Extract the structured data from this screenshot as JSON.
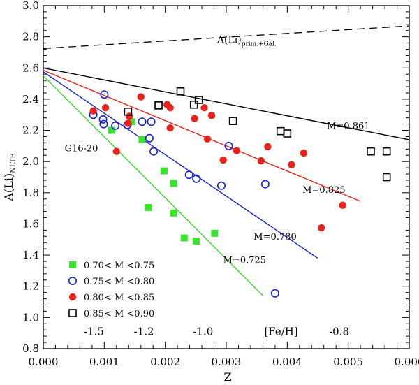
{
  "chart_data": {
    "type": "scatter",
    "xlabel": "Z",
    "ylabel_main": "A(Li)",
    "ylabel_sub": "NLTE",
    "xlim": [
      0.0,
      0.006
    ],
    "ylim": [
      0.8,
      3.0
    ],
    "x_ticks": [
      {
        "value": 0.0,
        "label": "0.000"
      },
      {
        "value": 0.001,
        "label": "0.001"
      },
      {
        "value": 0.002,
        "label": "0.002"
      },
      {
        "value": 0.003,
        "label": "0.003"
      },
      {
        "value": 0.004,
        "label": "0.004"
      },
      {
        "value": 0.005,
        "label": "0.005"
      },
      {
        "value": 0.006,
        "label": "0.006"
      }
    ],
    "y_ticks": [
      {
        "value": 0.8,
        "label": "0.8"
      },
      {
        "value": 1.0,
        "label": "1.0"
      },
      {
        "value": 1.2,
        "label": "1.2"
      },
      {
        "value": 1.4,
        "label": "1.4"
      },
      {
        "value": 1.6,
        "label": "1.6"
      },
      {
        "value": 1.8,
        "label": "1.8"
      },
      {
        "value": 2.0,
        "label": "2.0"
      },
      {
        "value": 2.2,
        "label": "2.2"
      },
      {
        "value": 2.4,
        "label": "2.4"
      },
      {
        "value": 2.6,
        "label": "2.6"
      },
      {
        "value": 2.8,
        "label": "2.8"
      },
      {
        "value": 3.0,
        "label": "3.0"
      }
    ],
    "feh_axis": {
      "title": "[Fe/H]",
      "title_x": 0.0039,
      "y": 0.888,
      "ticks": [
        {
          "z": 0.00083,
          "label": "-1.5"
        },
        {
          "z": 0.00165,
          "label": "-1.2"
        },
        {
          "z": 0.00262,
          "label": "-1.0"
        },
        {
          "z": 0.00485,
          "label": "-0.8"
        }
      ]
    },
    "primordial_line": {
      "label": "A(Li)",
      "label_sub": "prim.+Gal.",
      "style": "dashed",
      "points": [
        [
          0.0,
          2.725
        ],
        [
          0.006,
          2.87
        ]
      ],
      "label_at": [
        0.00285,
        2.76
      ]
    },
    "fit_lines": [
      {
        "label": "M=0.861",
        "color": "#000000",
        "points": [
          [
            0.0,
            2.6
          ],
          [
            0.006,
            2.14
          ]
        ],
        "label_at": [
          0.00465,
          2.21
        ]
      },
      {
        "label": "M=0.825",
        "color": "#e8231b",
        "points": [
          [
            0.0,
            2.585
          ],
          [
            0.0052,
            1.745
          ]
        ],
        "label_at": [
          0.00425,
          1.8
        ]
      },
      {
        "label": "M=0.780",
        "color": "#1522d8",
        "points": [
          [
            0.0,
            2.575
          ],
          [
            0.0045,
            1.38
          ]
        ],
        "label_at": [
          0.00345,
          1.5
        ]
      },
      {
        "label": "M=0.725",
        "color": "#3be42c",
        "points": [
          [
            0.0,
            2.55
          ],
          [
            0.0036,
            1.14
          ]
        ],
        "label_at": [
          0.00295,
          1.35
        ]
      }
    ],
    "annotations": [
      {
        "text": "G16-20",
        "color": "#e8231b",
        "at": [
          0.00035,
          2.065
        ]
      }
    ],
    "legend": {
      "placement": "bottom-left",
      "entries": [
        {
          "series": "green_squares",
          "label": "0.70< M <0.75"
        },
        {
          "series": "blue_circles",
          "label": "0.75< M <0.80"
        },
        {
          "series": "red_dots",
          "label": "0.80< M <0.85"
        },
        {
          "series": "black_squares",
          "label": "0.85< M <0.90"
        }
      ]
    },
    "series": [
      {
        "key": "green_squares",
        "name": "0.70< M <0.75",
        "marker": "filled-square",
        "color": "#3be42c",
        "points": [
          [
            0.00112,
            2.2
          ],
          [
            0.00145,
            2.255
          ],
          [
            0.00162,
            2.14
          ],
          [
            0.00198,
            1.94
          ],
          [
            0.00214,
            1.86
          ],
          [
            0.00172,
            1.705
          ],
          [
            0.00214,
            1.67
          ],
          [
            0.00231,
            1.51
          ],
          [
            0.00251,
            1.49
          ],
          [
            0.00281,
            1.54
          ]
        ]
      },
      {
        "key": "blue_circles",
        "name": "0.75< M <0.80",
        "marker": "open-circle",
        "color": "#1522d8",
        "points": [
          [
            0.00082,
            2.3
          ],
          [
            0.00098,
            2.27
          ],
          [
            0.00099,
            2.24
          ],
          [
            0.001,
            2.43
          ],
          [
            0.00118,
            2.23
          ],
          [
            0.00138,
            2.235
          ],
          [
            0.00162,
            2.255
          ],
          [
            0.00177,
            2.255
          ],
          [
            0.00174,
            2.15
          ],
          [
            0.00181,
            2.065
          ],
          [
            0.00239,
            1.915
          ],
          [
            0.00251,
            1.89
          ],
          [
            0.00292,
            1.845
          ],
          [
            0.00304,
            2.1
          ],
          [
            0.00364,
            1.855
          ],
          [
            0.0038,
            1.155
          ]
        ]
      },
      {
        "key": "red_dots",
        "name": "0.80< M <0.85",
        "marker": "filled-circle",
        "color": "#e8231b",
        "points": [
          [
            0.00082,
            2.325
          ],
          [
            0.00102,
            2.345
          ],
          [
            0.00139,
            2.245
          ],
          [
            0.00141,
            2.29
          ],
          [
            0.0016,
            2.415
          ],
          [
            0.00203,
            2.365
          ],
          [
            0.00208,
            2.345
          ],
          [
            0.00208,
            2.215
          ],
          [
            0.00248,
            2.275
          ],
          [
            0.00264,
            2.345
          ],
          [
            0.00276,
            2.295
          ],
          [
            0.00269,
            2.145
          ],
          [
            0.00295,
            2.01
          ],
          [
            0.00317,
            2.07
          ],
          [
            0.00357,
            2.005
          ],
          [
            0.00368,
            2.095
          ],
          [
            0.00407,
            1.98
          ],
          [
            0.00427,
            2.055
          ],
          [
            0.00456,
            1.575
          ],
          [
            0.00491,
            1.72
          ],
          [
            0.0012,
            2.065
          ]
        ]
      },
      {
        "key": "black_squares",
        "name": "0.85< M <0.90",
        "marker": "open-square",
        "color": "#000000",
        "points": [
          [
            0.00139,
            2.32
          ],
          [
            0.00189,
            2.36
          ],
          [
            0.00225,
            2.45
          ],
          [
            0.00247,
            2.365
          ],
          [
            0.00255,
            2.395
          ],
          [
            0.00311,
            2.26
          ],
          [
            0.00389,
            2.195
          ],
          [
            0.004,
            2.18
          ],
          [
            0.00537,
            2.065
          ],
          [
            0.00563,
            2.065
          ],
          [
            0.00563,
            1.9
          ]
        ]
      }
    ]
  }
}
